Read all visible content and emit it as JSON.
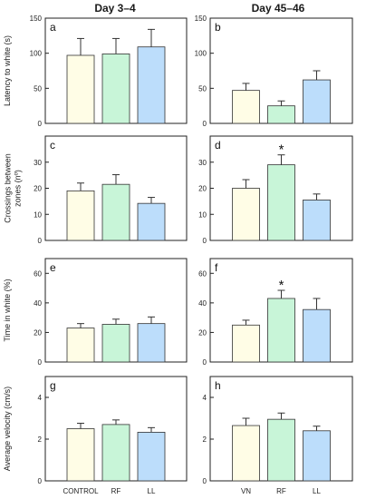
{
  "column_titles": [
    "Day 3–4",
    "Day 45–46"
  ],
  "row_ylabels": [
    [
      "Latency to white (s)"
    ],
    [
      "Crossings between",
      "zones (nº)"
    ],
    [
      "Time in white (%)"
    ],
    [
      "Average velocity (cm/s)"
    ]
  ],
  "colors": {
    "bar_1": "#FFFDE6",
    "bar_2": "#C8F5D8",
    "bar_3": "#BCDDFB",
    "stroke": "#333333"
  },
  "chart_data": [
    {
      "type": "bar",
      "panel": "a",
      "row": 0,
      "col": 0,
      "categories": [
        "CONTROL",
        "RF",
        "LL"
      ],
      "show_categories": false,
      "values": [
        97,
        99,
        109
      ],
      "errors": [
        24,
        22,
        25
      ],
      "ylim": [
        0,
        150
      ],
      "yticks": [
        0,
        50,
        100,
        150
      ],
      "significant": []
    },
    {
      "type": "bar",
      "panel": "b",
      "row": 0,
      "col": 1,
      "categories": [
        "VN",
        "RF",
        "LL"
      ],
      "show_categories": false,
      "values": [
        47,
        25,
        62
      ],
      "errors": [
        10,
        7,
        13
      ],
      "ylim": [
        0,
        150
      ],
      "yticks": [
        0,
        50,
        100,
        150
      ],
      "significant": []
    },
    {
      "type": "bar",
      "panel": "c",
      "row": 1,
      "col": 0,
      "categories": [
        "CONTROL",
        "RF",
        "LL"
      ],
      "show_categories": false,
      "values": [
        19,
        21.5,
        14.2
      ],
      "errors": [
        3,
        3.7,
        2.3
      ],
      "ylim": [
        0,
        40
      ],
      "yticks": [
        0,
        10,
        20,
        30
      ],
      "significant": []
    },
    {
      "type": "bar",
      "panel": "d",
      "row": 1,
      "col": 1,
      "categories": [
        "VN",
        "RF",
        "LL"
      ],
      "show_categories": false,
      "values": [
        20,
        29,
        15.5
      ],
      "errors": [
        3.3,
        3.8,
        2.3
      ],
      "ylim": [
        0,
        40
      ],
      "yticks": [
        0,
        10,
        20,
        30
      ],
      "significant": [
        1
      ]
    },
    {
      "type": "bar",
      "panel": "e",
      "row": 2,
      "col": 0,
      "categories": [
        "CONTROL",
        "RF",
        "LL"
      ],
      "show_categories": false,
      "values": [
        23,
        25.5,
        26
      ],
      "errors": [
        3,
        3.5,
        4.5
      ],
      "ylim": [
        0,
        70
      ],
      "yticks": [
        0,
        20,
        40,
        60
      ],
      "significant": []
    },
    {
      "type": "bar",
      "panel": "f",
      "row": 2,
      "col": 1,
      "categories": [
        "VN",
        "RF",
        "LL"
      ],
      "show_categories": false,
      "values": [
        25,
        43,
        35.5
      ],
      "errors": [
        3.3,
        5.5,
        7.5
      ],
      "ylim": [
        0,
        70
      ],
      "yticks": [
        0,
        20,
        40,
        60
      ],
      "significant": [
        1
      ]
    },
    {
      "type": "bar",
      "panel": "g",
      "row": 3,
      "col": 0,
      "categories": [
        "CONTROL",
        "RF",
        "LL"
      ],
      "show_categories": true,
      "values": [
        2.5,
        2.7,
        2.33
      ],
      "errors": [
        0.26,
        0.22,
        0.22
      ],
      "ylim": [
        0,
        5
      ],
      "yticks": [
        0,
        2,
        4
      ],
      "significant": []
    },
    {
      "type": "bar",
      "panel": "h",
      "row": 3,
      "col": 1,
      "categories": [
        "VN",
        "RF",
        "LL"
      ],
      "show_categories": true,
      "values": [
        2.65,
        2.95,
        2.4
      ],
      "errors": [
        0.35,
        0.3,
        0.22
      ],
      "ylim": [
        0,
        5
      ],
      "yticks": [
        0,
        2,
        4
      ],
      "significant": []
    }
  ],
  "significance_marker": "*"
}
